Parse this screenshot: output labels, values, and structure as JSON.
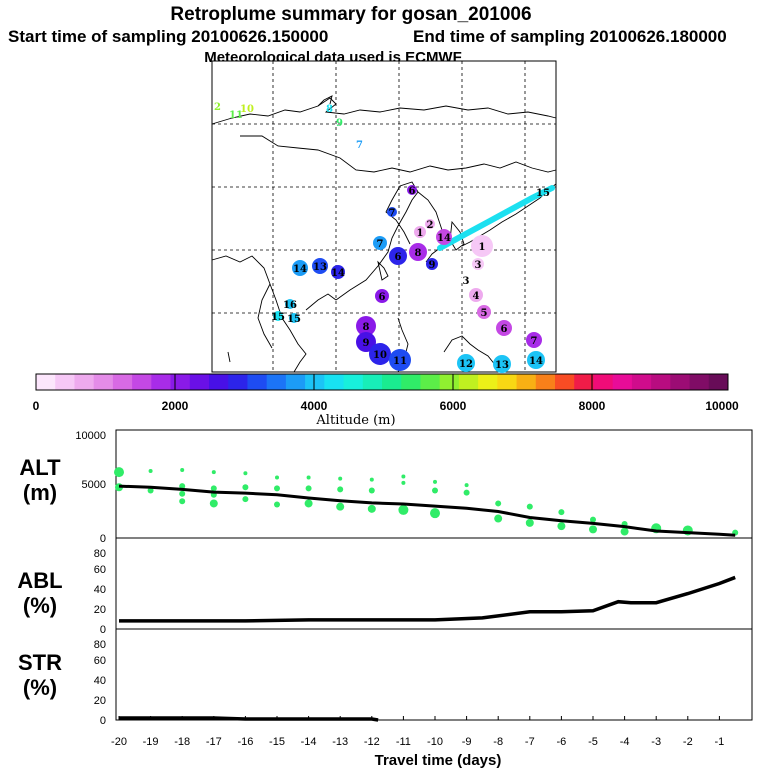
{
  "header": {
    "title": "Retroplume summary for gosan_201006",
    "start_label": "Start time of sampling 20100626.150000",
    "end_label": "End time of sampling 20100626.180000",
    "met_label": "Meteorological data used is ECMWF"
  },
  "colorbar": {
    "ticks": [
      "0",
      "2000",
      "4000",
      "6000",
      "8000",
      "10000"
    ],
    "label": "Altitude (m)",
    "colors": [
      "#fce6fc",
      "#f6c8f6",
      "#eeaaee",
      "#e48ce8",
      "#d86ae4",
      "#c448e4",
      "#a82ce8",
      "#8a1ae8",
      "#6a10e6",
      "#4810e6",
      "#2c24ea",
      "#1e4cf2",
      "#1c74f6",
      "#1c9cf6",
      "#1cc4f6",
      "#18e2f2",
      "#18f0dc",
      "#18eeb8",
      "#1aec90",
      "#30ec68",
      "#5cee48",
      "#90f030",
      "#c0f020",
      "#ecf018",
      "#f8d814",
      "#f8b014",
      "#f8801a",
      "#f84c24",
      "#f01c48",
      "#f00c78",
      "#e80c98",
      "#d00c8c",
      "#b80c80",
      "#9c0c74",
      "#800c66",
      "#680c58"
    ]
  },
  "map": {
    "day_labels": [
      {
        "t": "2",
        "c": "#90f030"
      },
      {
        "t": "11",
        "c": "#5cee48"
      },
      {
        "t": "10",
        "c": "#c0f020"
      },
      {
        "t": "8",
        "c": "#18e2f2"
      },
      {
        "t": "9",
        "c": "#30ec68"
      },
      {
        "t": "7",
        "c": "#1c9cf6"
      },
      {
        "t": "15",
        "c": "#18e2f2"
      }
    ],
    "markers": [
      {
        "t": "1",
        "c": "#eeaaee"
      },
      {
        "t": "2",
        "c": "#eeaaee"
      },
      {
        "t": "3",
        "c": "#f6c8f6"
      },
      {
        "t": "4",
        "c": "#eeaaee"
      },
      {
        "t": "5",
        "c": "#d86ae4"
      },
      {
        "t": "6",
        "c": "#c448e4"
      },
      {
        "t": "7",
        "c": "#a82ce8"
      },
      {
        "t": "8",
        "c": "#8a1ae8"
      },
      {
        "t": "9",
        "c": "#4810e6"
      },
      {
        "t": "10",
        "c": "#2c24ea"
      },
      {
        "t": "11",
        "c": "#1e4cf2"
      },
      {
        "t": "12",
        "c": "#1cc4f6"
      },
      {
        "t": "13",
        "c": "#1cc4f6"
      },
      {
        "t": "14",
        "c": "#1cc4f6"
      },
      {
        "t": "6",
        "c": "#8a1ae8"
      },
      {
        "t": "7",
        "c": "#1c9cf6"
      },
      {
        "t": "6",
        "c": "#2c24ea"
      },
      {
        "t": "14",
        "c": "#1c9cf6"
      },
      {
        "t": "13",
        "c": "#1e4cf2"
      },
      {
        "t": "14",
        "c": "#2c24ea"
      },
      {
        "t": "16",
        "c": "#1cc4f6"
      },
      {
        "t": "15",
        "c": "#18e2f2"
      },
      {
        "t": "15",
        "c": "#1cc4f6"
      },
      {
        "t": "14",
        "c": "#c448e4"
      },
      {
        "t": "8",
        "c": "#a82ce8"
      },
      {
        "t": "1",
        "c": "#f6c8f6"
      },
      {
        "t": "6",
        "c": "#8a1ae8"
      },
      {
        "t": "7",
        "c": "#1e4cf2"
      },
      {
        "t": "9",
        "c": "#2c24ea"
      },
      {
        "t": "3",
        "c": "#ffffff"
      }
    ]
  },
  "chart_data": [
    {
      "type": "scatter",
      "panel": "ALT",
      "ylabel": "ALT\n(m)",
      "xlabel": "Travel time (days)",
      "xlim": [
        -20,
        0
      ],
      "ylim": [
        0,
        10000
      ],
      "yticks": [
        "0",
        "5000",
        "10000"
      ],
      "series": [
        {
          "name": "median altitude",
          "type": "line",
          "x": [
            -20,
            -19,
            -18,
            -17,
            -16,
            -15,
            -14,
            -13,
            -12,
            -11,
            -10,
            -9,
            -8,
            -7,
            -6,
            -5,
            -4,
            -3,
            -2,
            -1,
            -0.5
          ],
          "y": [
            4800,
            4700,
            4500,
            4250,
            4150,
            4000,
            3700,
            3450,
            3250,
            3150,
            2950,
            2750,
            2450,
            1900,
            1600,
            1350,
            1050,
            650,
            500,
            350,
            250
          ]
        },
        {
          "name": "plume clusters",
          "type": "scatter",
          "x": [
            -20,
            -20,
            -19,
            -19,
            -18,
            -18,
            -18,
            -18,
            -17,
            -17,
            -17,
            -17,
            -16,
            -16,
            -16,
            -15,
            -15,
            -15,
            -14,
            -14,
            -14,
            -13,
            -13,
            -13,
            -12,
            -12,
            -12,
            -11,
            -11,
            -11,
            -10,
            -10,
            -10,
            -9,
            -9,
            -8,
            -8,
            -7,
            -7,
            -6,
            -6,
            -5,
            -5,
            -4,
            -4,
            -3,
            -2,
            -0.5
          ],
          "y": [
            6100,
            4700,
            6200,
            4400,
            6300,
            4800,
            4100,
            3400,
            6100,
            4600,
            4000,
            3200,
            6000,
            4700,
            3600,
            5600,
            4600,
            3100,
            5600,
            4600,
            3200,
            5500,
            4500,
            2900,
            5400,
            4400,
            2700,
            5700,
            5100,
            2600,
            5200,
            4400,
            2300,
            4900,
            4200,
            3200,
            1800,
            2900,
            1400,
            2400,
            1100,
            1700,
            800,
            1300,
            600,
            900,
            700,
            500
          ],
          "size": [
            5,
            4,
            2,
            3,
            2,
            3,
            3,
            3,
            2,
            3,
            3,
            4,
            2,
            3,
            3,
            2,
            3,
            3,
            2,
            3,
            4,
            2,
            3,
            4,
            2,
            3,
            4,
            2,
            2,
            5,
            2,
            3,
            5,
            2,
            3,
            3,
            4,
            3,
            4,
            3,
            4,
            3,
            4,
            3,
            4,
            5,
            5,
            3
          ]
        }
      ]
    },
    {
      "type": "line",
      "panel": "ABL",
      "ylabel": "ABL\n(%)",
      "xlabel": "Travel time (days)",
      "xlim": [
        -20,
        0
      ],
      "ylim": [
        0,
        90
      ],
      "yticks": [
        "0",
        "20",
        "40",
        "60",
        "80"
      ],
      "series": [
        {
          "name": "ABL fraction",
          "x": [
            -20,
            -18,
            -16,
            -14,
            -12,
            -10,
            -8.5,
            -7,
            -6,
            -5,
            -4.2,
            -3.8,
            -3,
            -2,
            -1,
            -0.5
          ],
          "y": [
            8,
            8,
            8,
            9,
            9,
            9,
            11,
            17,
            17,
            18,
            27,
            26,
            26,
            35,
            45,
            51
          ]
        }
      ]
    },
    {
      "type": "line",
      "panel": "STR",
      "ylabel": "STR\n(%)",
      "xlabel": "Travel time (days)",
      "xlim": [
        -20,
        0
      ],
      "ylim": [
        0,
        90
      ],
      "yticks": [
        "0",
        "20",
        "40",
        "60",
        "80"
      ],
      "xticks": [
        "-20",
        "-19",
        "-18",
        "-17",
        "-16",
        "-15",
        "-14",
        "-13",
        "-12",
        "-11",
        "-10",
        "-9",
        "-8",
        "-7",
        "-6",
        "-5",
        "-4",
        "-3",
        "-2",
        "-1"
      ],
      "series": [
        {
          "name": "stratospheric fraction",
          "x": [
            -20,
            -18,
            -17,
            -16,
            -14,
            -12,
            -11.8
          ],
          "y": [
            2,
            2,
            2,
            1,
            1,
            1,
            0
          ]
        }
      ]
    }
  ]
}
